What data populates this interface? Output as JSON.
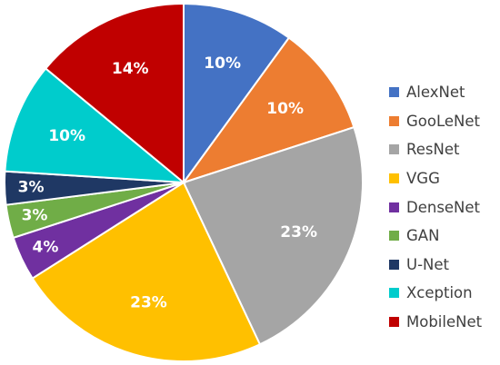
{
  "chart_data": {
    "type": "pie",
    "title": "",
    "legend_position": "right",
    "slices": [
      {
        "label": "AlexNet",
        "value": 10,
        "display": "10%",
        "color": "#4472C4"
      },
      {
        "label": "GooLeNet",
        "value": 10,
        "display": "10%",
        "color": "#ED7D31"
      },
      {
        "label": "ResNet",
        "value": 23,
        "display": "23%",
        "color": "#A5A5A5"
      },
      {
        "label": "VGG",
        "value": 23,
        "display": "23%",
        "color": "#FFC000"
      },
      {
        "label": "DenseNet",
        "value": 4,
        "display": "4%",
        "color": "#7030A0"
      },
      {
        "label": "GAN",
        "value": 3,
        "display": "3%",
        "color": "#70AD47"
      },
      {
        "label": "U-Net",
        "value": 3,
        "display": "3%",
        "color": "#1F3864"
      },
      {
        "label": "Xception",
        "value": 10,
        "display": "10%",
        "color": "#00CCCC"
      },
      {
        "label": "MobileNet",
        "value": 14,
        "display": "14%",
        "color": "#C00000"
      }
    ]
  }
}
